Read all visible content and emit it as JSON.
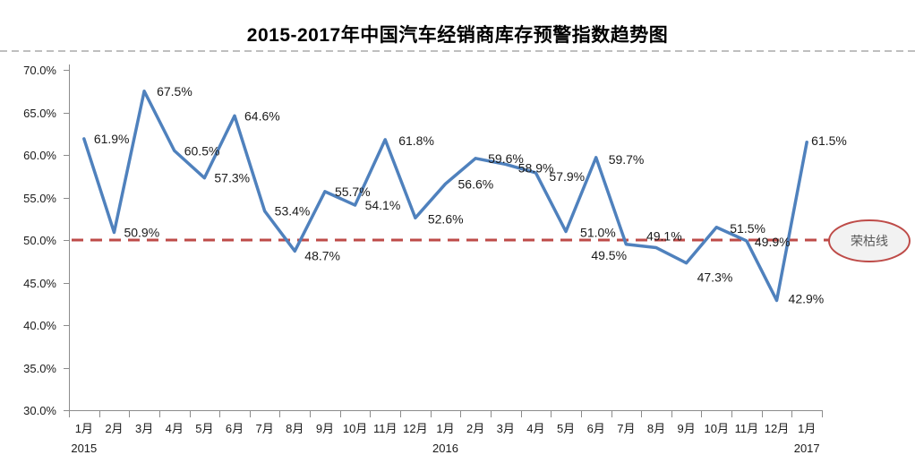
{
  "chart_data": {
    "type": "line",
    "title": "2015-2017年中国汽车经销商库存预警指数趋势图",
    "categories": [
      "1月",
      "2月",
      "3月",
      "4月",
      "5月",
      "6月",
      "7月",
      "8月",
      "9月",
      "10月",
      "11月",
      "12月",
      "1月",
      "2月",
      "3月",
      "4月",
      "5月",
      "6月",
      "7月",
      "8月",
      "9月",
      "10月",
      "11月",
      "12月",
      "1月"
    ],
    "year_labels": [
      {
        "index": 0,
        "label": "2015"
      },
      {
        "index": 12,
        "label": "2016"
      },
      {
        "index": 24,
        "label": "2017"
      }
    ],
    "values": [
      61.9,
      50.9,
      67.5,
      60.5,
      57.3,
      64.6,
      53.4,
      48.7,
      55.7,
      54.1,
      61.8,
      52.6,
      56.6,
      59.6,
      58.9,
      57.9,
      51.0,
      59.7,
      49.5,
      49.1,
      47.3,
      51.5,
      49.9,
      42.9,
      61.5
    ],
    "data_label_suffix": "%",
    "ylim": [
      30,
      70
    ],
    "ytick_step": 5,
    "ytick_label_format": "percent_one_decimal",
    "grid": false,
    "legend": "none",
    "threshold": {
      "value": 50,
      "label": "荣枯线"
    },
    "colors": {
      "series": "#4F81BD",
      "threshold": "#BE4B48",
      "ellipse_fill": "#F2F2F2",
      "ellipse_text": "#595959",
      "axis": "#8C8C8C",
      "text": "#1a1a1a",
      "separator": "#BFBFBF"
    }
  }
}
